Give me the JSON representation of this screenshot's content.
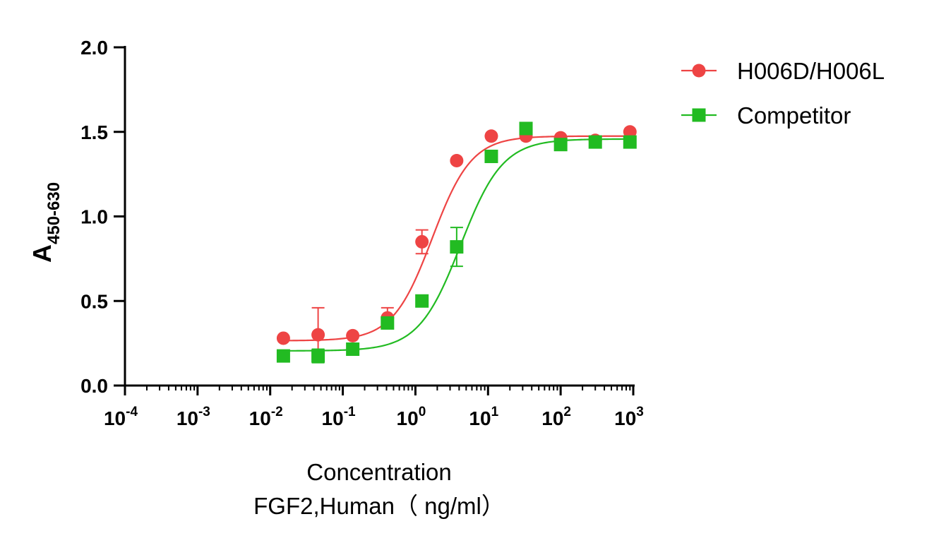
{
  "chart_data": {
    "type": "scatter",
    "xlabel": "Concentration",
    "xlabel_line2": "FGF2,Human（ ng/ml）",
    "ylabel_main": "A",
    "ylabel_sub": "450-630",
    "x_scale": "log",
    "xlim": [
      0.0001,
      1000
    ],
    "ylim": [
      0,
      2.0
    ],
    "x_ticks": [
      {
        "value": 0.0001,
        "base": "10",
        "exp": "-4"
      },
      {
        "value": 0.001,
        "base": "10",
        "exp": "-3"
      },
      {
        "value": 0.01,
        "base": "10",
        "exp": "-2"
      },
      {
        "value": 0.1,
        "base": "10",
        "exp": "-1"
      },
      {
        "value": 1,
        "base": "10",
        "exp": "0"
      },
      {
        "value": 10,
        "base": "10",
        "exp": "1"
      },
      {
        "value": 100,
        "base": "10",
        "exp": "2"
      },
      {
        "value": 1000,
        "base": "10",
        "exp": "3"
      }
    ],
    "y_ticks": [
      {
        "value": 0.0,
        "label": "0.0"
      },
      {
        "value": 0.5,
        "label": "0.5"
      },
      {
        "value": 1.0,
        "label": "1.0"
      },
      {
        "value": 1.5,
        "label": "1.5"
      },
      {
        "value": 2.0,
        "label": "2.0"
      }
    ],
    "legend_position": "top-right",
    "series": [
      {
        "name": "H006D/H006L",
        "color": "#ee4444",
        "marker": "circle",
        "x": [
          0.0152,
          0.0457,
          0.137,
          0.412,
          1.23,
          3.7,
          11.1,
          33.3,
          100,
          300,
          900
        ],
        "y": [
          0.28,
          0.3,
          0.295,
          0.4,
          0.85,
          1.33,
          1.475,
          1.475,
          1.465,
          1.45,
          1.5
        ],
        "err": [
          0.0,
          0.16,
          0.0,
          0.06,
          0.07,
          0.0,
          0.0,
          0.0,
          0.0,
          0.0,
          0.0
        ],
        "fit": {
          "bottom": 0.265,
          "top": 1.475,
          "ec50": 1.7,
          "hill": 1.6
        }
      },
      {
        "name": "Competitor",
        "color": "#22bb22",
        "marker": "square",
        "x": [
          0.0152,
          0.0457,
          0.137,
          0.412,
          1.23,
          3.7,
          11.1,
          33.3,
          100,
          300,
          900
        ],
        "y": [
          0.175,
          0.175,
          0.215,
          0.37,
          0.5,
          0.82,
          1.355,
          1.52,
          1.425,
          1.44,
          1.44
        ],
        "err": [
          0.0,
          0.04,
          0.0,
          0.0,
          0.0,
          0.115,
          0.0,
          0.0,
          0.0,
          0.0,
          0.0
        ],
        "fit": {
          "bottom": 0.205,
          "top": 1.458,
          "ec50": 4.2,
          "hill": 1.5
        }
      }
    ]
  }
}
